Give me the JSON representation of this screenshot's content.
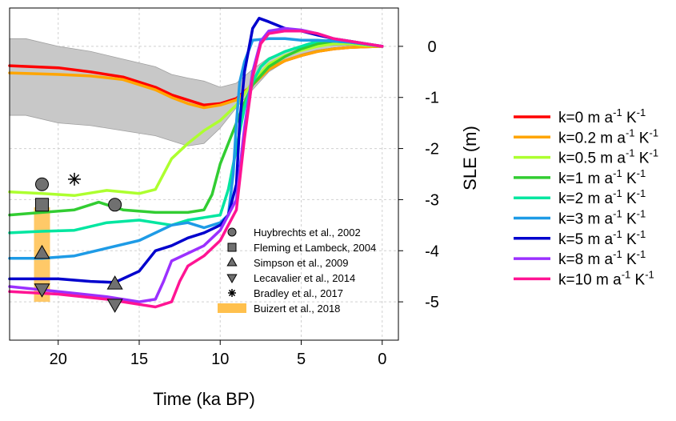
{
  "chart_data": {
    "type": "line",
    "xlabel": "Time (ka BP)",
    "ylabel": "SLE (m)",
    "xlim": [
      23,
      -1
    ],
    "ylim": [
      -5.75,
      0.75
    ],
    "x_ticks": [
      20,
      15,
      10,
      5,
      0
    ],
    "y_ticks": [
      0,
      -1,
      -2,
      -3,
      -4,
      -5
    ],
    "x_tick_labels": [
      "20",
      "15",
      "10",
      "5",
      "0"
    ],
    "y_tick_labels": [
      "0",
      "-1",
      "-2",
      "-3",
      "-4",
      "-5"
    ],
    "grid": true,
    "legend_placement": "right",
    "band": {
      "color": "#c8c8c8",
      "x": [
        23,
        22,
        20,
        18,
        16,
        14,
        13,
        12,
        11,
        10,
        9,
        8,
        7,
        6,
        5,
        4,
        3,
        2,
        1,
        0
      ],
      "upper": [
        0.15,
        0.15,
        0.0,
        -0.1,
        -0.25,
        -0.4,
        -0.55,
        -0.62,
        -0.68,
        -0.8,
        -0.72,
        -0.45,
        -0.22,
        -0.1,
        -0.03,
        0.0,
        0.02,
        0.02,
        0.01,
        0.0
      ],
      "lower": [
        -1.35,
        -1.35,
        -1.5,
        -1.55,
        -1.65,
        -1.75,
        -1.85,
        -1.95,
        -1.9,
        -1.6,
        -1.2,
        -0.85,
        -0.5,
        -0.3,
        -0.15,
        -0.07,
        -0.03,
        0.0,
        0.0,
        0.0
      ]
    },
    "series": [
      {
        "name": "k=0 m a⁻¹ K⁻¹",
        "color": "#ff0000",
        "x": [
          23,
          20,
          18,
          16,
          14,
          13,
          12,
          11,
          10,
          9,
          8,
          7,
          6,
          5,
          4,
          3,
          2,
          1,
          0
        ],
        "y": [
          -0.38,
          -0.42,
          -0.5,
          -0.6,
          -0.8,
          -0.95,
          -1.05,
          -1.15,
          -1.12,
          -1.02,
          -0.75,
          -0.45,
          -0.28,
          -0.18,
          -0.1,
          -0.05,
          -0.02,
          -0.01,
          0.0
        ]
      },
      {
        "name": "k=0.2 m a⁻¹ K⁻¹",
        "color": "#ffa500",
        "x": [
          23,
          20,
          18,
          16,
          14,
          13,
          12,
          11,
          10,
          9,
          8,
          7,
          6,
          5,
          4,
          3,
          2,
          1,
          0
        ],
        "y": [
          -0.52,
          -0.55,
          -0.58,
          -0.65,
          -0.85,
          -1.0,
          -1.12,
          -1.2,
          -1.15,
          -1.05,
          -0.75,
          -0.45,
          -0.28,
          -0.18,
          -0.1,
          -0.05,
          -0.02,
          -0.01,
          0.0
        ]
      },
      {
        "name": "k=0.5 m a⁻¹ K⁻¹",
        "color": "#adff2f",
        "x": [
          23,
          21,
          19,
          17,
          15,
          14,
          13.5,
          13,
          12,
          11,
          10,
          9,
          8,
          7,
          6,
          5,
          4,
          3,
          2,
          1,
          0
        ],
        "y": [
          -2.85,
          -2.88,
          -2.92,
          -2.82,
          -2.88,
          -2.8,
          -2.5,
          -2.2,
          -1.9,
          -1.65,
          -1.45,
          -1.15,
          -0.7,
          -0.35,
          -0.18,
          -0.08,
          0.0,
          0.05,
          0.05,
          0.02,
          0.0
        ]
      },
      {
        "name": "k=1 m a⁻¹ K⁻¹",
        "color": "#32cd32",
        "x": [
          23,
          21,
          19,
          17.5,
          16,
          14,
          12,
          11,
          10.5,
          10,
          9.5,
          9,
          8.5,
          8,
          7,
          6,
          5,
          4,
          3,
          2,
          1,
          0
        ],
        "y": [
          -3.3,
          -3.25,
          -3.2,
          -3.05,
          -3.2,
          -3.25,
          -3.25,
          -3.2,
          -2.9,
          -2.3,
          -1.9,
          -1.5,
          -1.1,
          -0.75,
          -0.4,
          -0.2,
          -0.05,
          0.05,
          0.1,
          0.08,
          0.04,
          0.0
        ]
      },
      {
        "name": "k=2 m a⁻¹ K⁻¹",
        "color": "#00e6a0",
        "x": [
          23,
          21,
          19,
          17,
          15,
          13,
          12,
          11,
          10,
          9.5,
          9,
          8.5,
          8,
          7.5,
          7,
          6,
          5,
          4,
          3,
          2,
          1,
          0
        ],
        "y": [
          -3.65,
          -3.62,
          -3.6,
          -3.45,
          -3.4,
          -3.5,
          -3.4,
          -3.35,
          -3.3,
          -2.8,
          -2.0,
          -1.2,
          -0.7,
          -0.4,
          -0.25,
          -0.1,
          0.0,
          0.1,
          0.12,
          0.1,
          0.05,
          0.0
        ]
      },
      {
        "name": "k=3 m a⁻¹ K⁻¹",
        "color": "#1e9be6",
        "x": [
          23,
          21,
          19,
          17,
          15,
          13,
          12,
          11,
          10,
          9.5,
          9.2,
          9,
          8.8,
          8.5,
          8,
          7,
          6,
          5,
          4,
          3,
          2,
          1,
          0
        ],
        "y": [
          -4.15,
          -4.15,
          -4.1,
          -3.95,
          -3.8,
          -3.5,
          -3.45,
          -3.55,
          -3.45,
          -3.3,
          -2.5,
          -1.5,
          -0.7,
          -0.3,
          0.12,
          0.15,
          0.15,
          0.12,
          0.12,
          0.1,
          0.08,
          0.04,
          0.0
        ]
      },
      {
        "name": "k=5 m a⁻¹ K⁻¹",
        "color": "#0000cd",
        "x": [
          23,
          20,
          18,
          16.5,
          15,
          14,
          13,
          12,
          11,
          10,
          9.5,
          9,
          8.8,
          8.5,
          8,
          7.6,
          7,
          6,
          5,
          4,
          3,
          2,
          1,
          0
        ],
        "y": [
          -4.55,
          -4.55,
          -4.6,
          -4.62,
          -4.4,
          -4.0,
          -3.9,
          -3.75,
          -3.65,
          -3.5,
          -3.3,
          -2.7,
          -1.5,
          -0.5,
          0.35,
          0.55,
          0.48,
          0.35,
          0.3,
          0.22,
          0.15,
          0.1,
          0.05,
          0.0
        ]
      },
      {
        "name": "k=8 m a⁻¹ K⁻¹",
        "color": "#9b30ff",
        "x": [
          23,
          20,
          17,
          15,
          14,
          13.5,
          13,
          12,
          11,
          10,
          9,
          8.5,
          8,
          7.5,
          7,
          6,
          5,
          4,
          3,
          2,
          1,
          0
        ],
        "y": [
          -4.7,
          -4.8,
          -4.9,
          -5.0,
          -4.95,
          -4.6,
          -4.2,
          -4.05,
          -3.9,
          -3.6,
          -3.0,
          -1.6,
          -0.5,
          0.1,
          0.3,
          0.35,
          0.32,
          0.25,
          0.15,
          0.1,
          0.05,
          0.0
        ]
      },
      {
        "name": "k=10 m a⁻¹ K⁻¹",
        "color": "#ff1493",
        "x": [
          23,
          20,
          17,
          15,
          14,
          13,
          12.5,
          12,
          11,
          10,
          9,
          8.5,
          8,
          7.5,
          7,
          6,
          5,
          4,
          3,
          2,
          1,
          0
        ],
        "y": [
          -4.8,
          -4.85,
          -4.95,
          -5.05,
          -5.1,
          -5.0,
          -4.6,
          -4.3,
          -4.1,
          -3.8,
          -3.2,
          -1.8,
          -0.6,
          0.05,
          0.25,
          0.3,
          0.3,
          0.25,
          0.15,
          0.1,
          0.05,
          0.0
        ]
      }
    ],
    "legend_names": [
      {
        "base": "k=0 m a",
        "mid": " K",
        "color": "#ff0000"
      },
      {
        "base": "k=0.2 m a",
        "mid": " K",
        "color": "#ffa500"
      },
      {
        "base": "k=0.5 m a",
        "mid": " K",
        "color": "#adff2f"
      },
      {
        "base": "k=1 m a",
        "mid": " K",
        "color": "#32cd32"
      },
      {
        "base": "k=2 m a",
        "mid": " K",
        "color": "#00e6a0"
      },
      {
        "base": "k=3 m a",
        "mid": " K",
        "color": "#1e9be6"
      },
      {
        "base": "k=5 m a",
        "mid": " K",
        "color": "#0000cd"
      },
      {
        "base": "k=8 m a",
        "mid": " K",
        "color": "#9b30ff"
      },
      {
        "base": "k=10 m a",
        "mid": " K",
        "color": "#ff1493"
      }
    ],
    "superscript": "-1",
    "observations": [
      {
        "name": "Huybrechts et al., 2002",
        "marker": "circle",
        "points": [
          [
            21,
            -2.7
          ],
          [
            16.5,
            -3.1
          ]
        ]
      },
      {
        "name": "Fleming et Lambeck, 2004",
        "marker": "square",
        "points": [
          [
            21,
            -3.1
          ]
        ]
      },
      {
        "name": "Simpson et al., 2009",
        "marker": "triangle-up",
        "points": [
          [
            21,
            -4.05
          ],
          [
            16.5,
            -4.65
          ]
        ]
      },
      {
        "name": "Lecavalier et al., 2014",
        "marker": "triangle-down",
        "points": [
          [
            21,
            -4.75
          ],
          [
            16.5,
            -5.05
          ]
        ]
      },
      {
        "name": "Bradley et al., 2017",
        "marker": "asterisk",
        "points": [
          [
            19,
            -2.6
          ]
        ]
      },
      {
        "name": "Buizert et al., 2018",
        "marker": "band",
        "color": "#ffc04d",
        "x": 21,
        "y_range": [
          -3.15,
          -5.0
        ]
      }
    ],
    "obs_marker_color": "#707070"
  }
}
